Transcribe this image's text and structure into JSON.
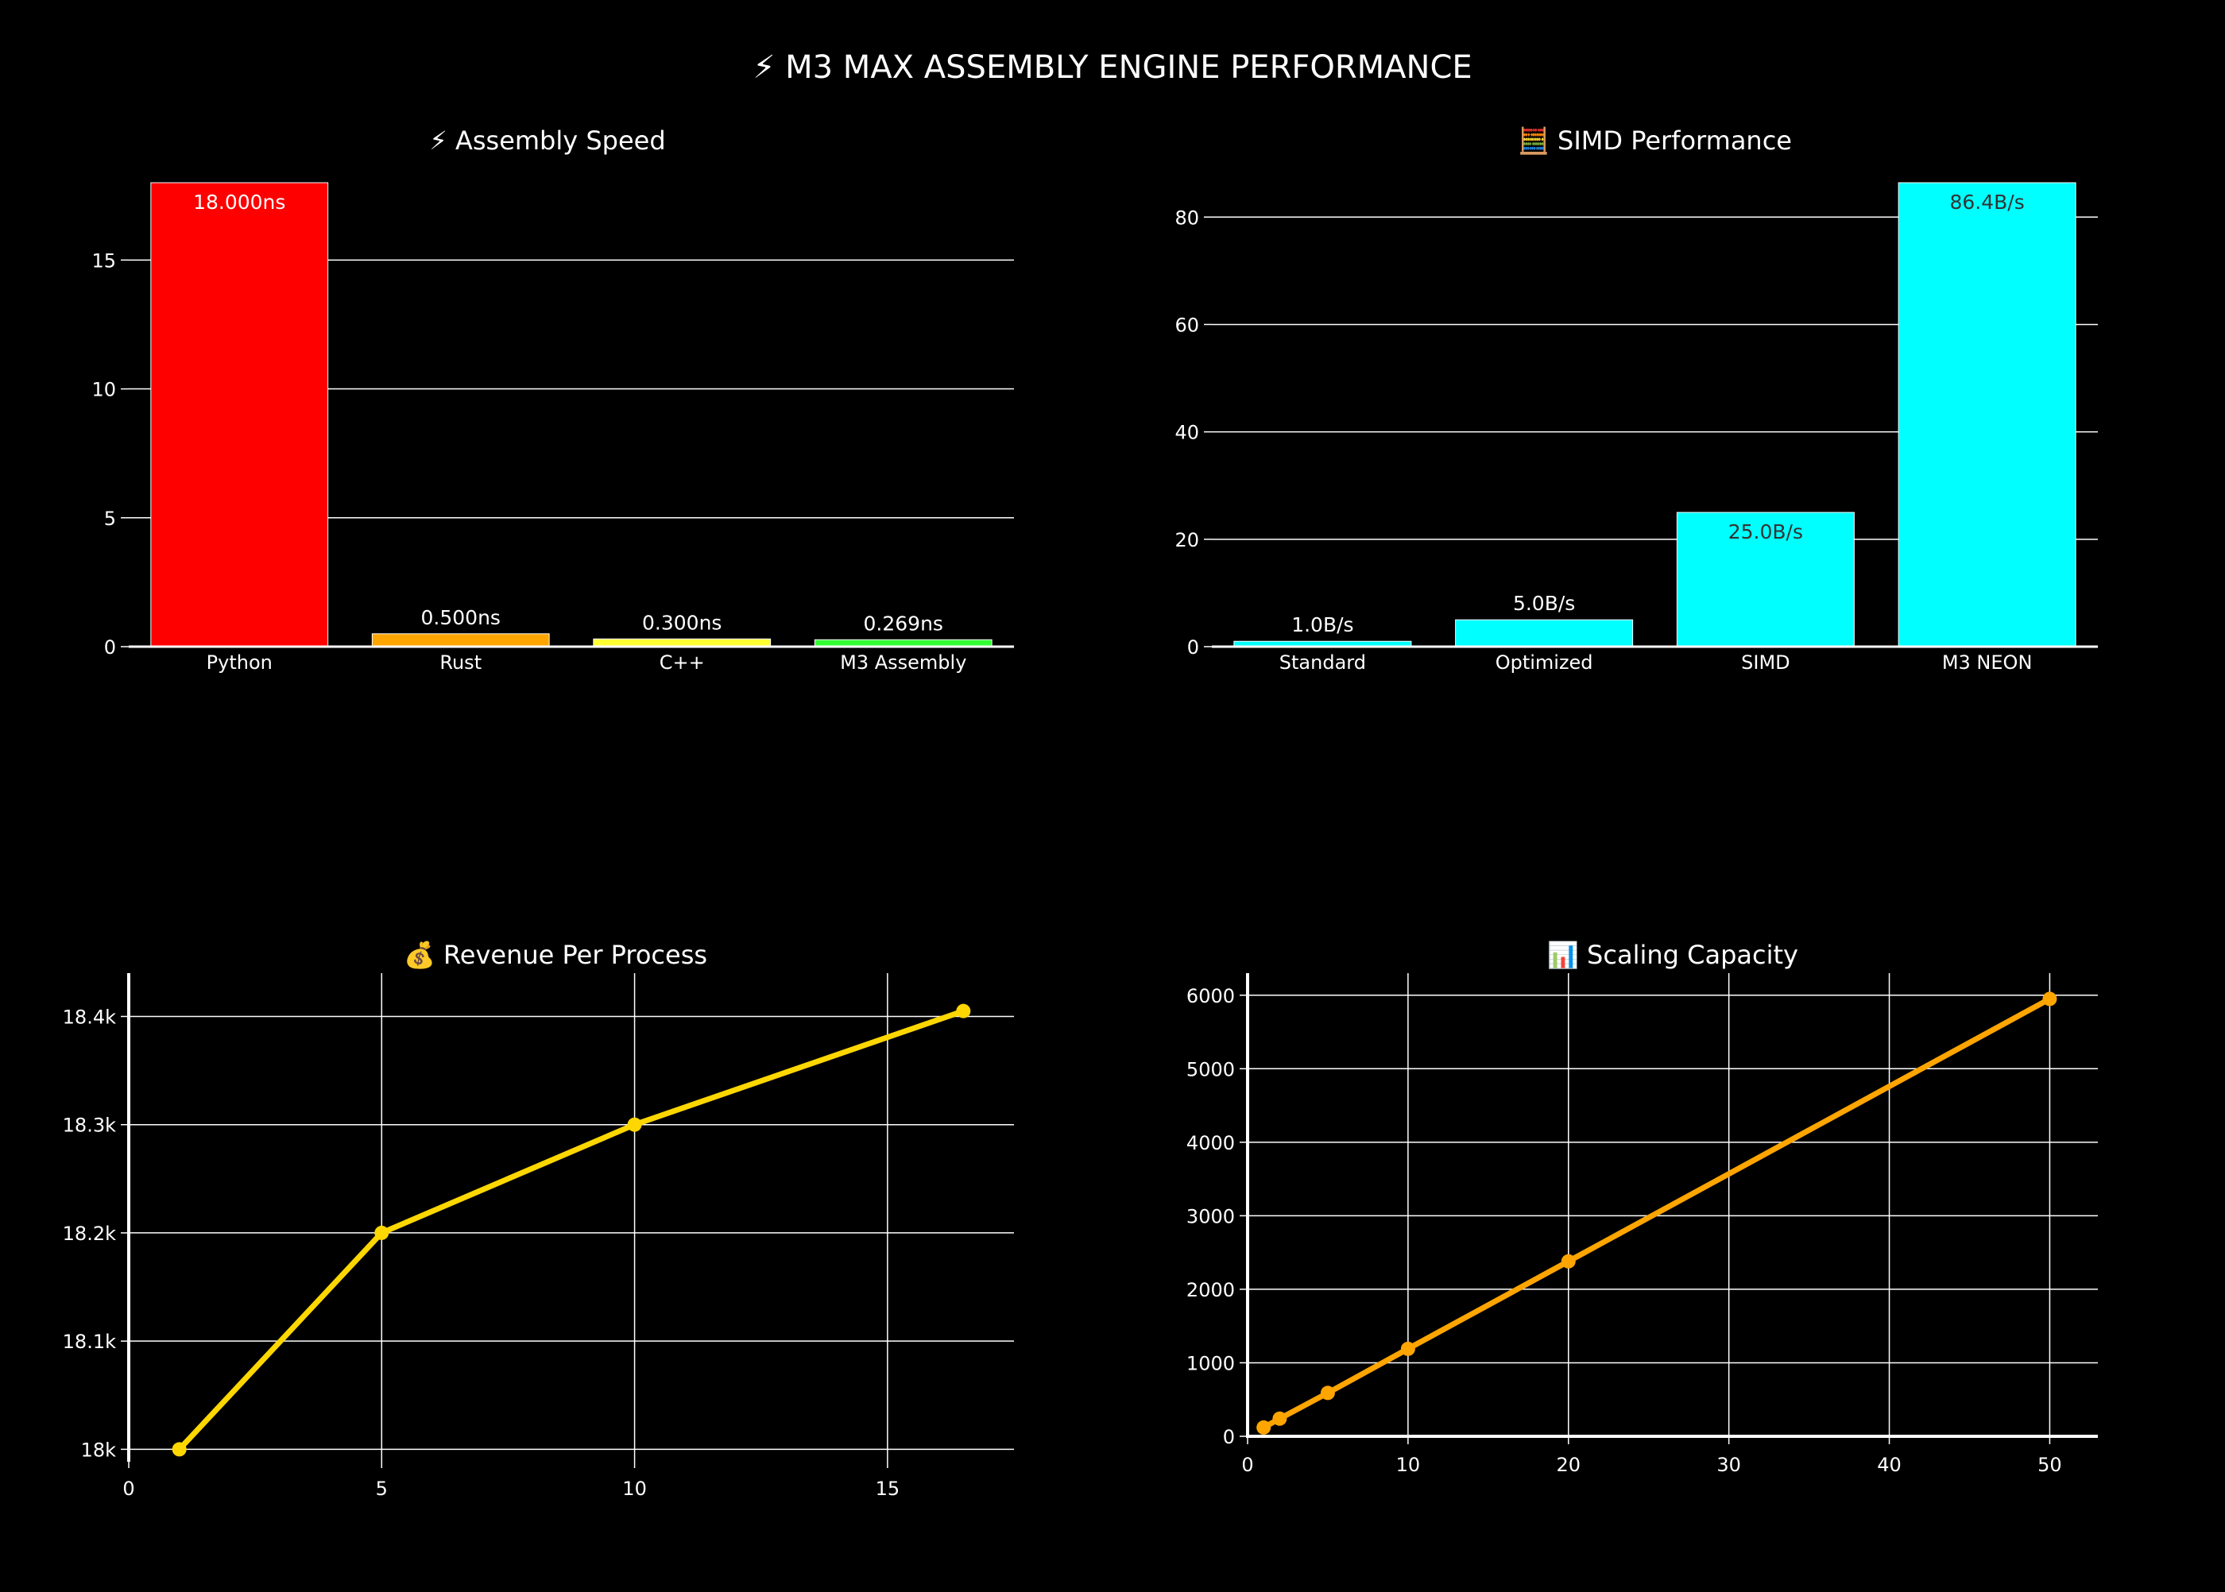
{
  "page_title": "⚡ M3 MAX ASSEMBLY ENGINE PERFORMANCE",
  "colors": {
    "background": "#000000",
    "grid": "#ffffff",
    "text": "#ffffff"
  },
  "chart_data": [
    {
      "id": "assembly-speed",
      "type": "bar",
      "title": "⚡ Assembly Speed",
      "categories": [
        "Python",
        "Rust",
        "C++",
        "M3 Assembly"
      ],
      "values": [
        18.0,
        0.5,
        0.3,
        0.269
      ],
      "labels": [
        "18.000ns",
        "0.500ns",
        "0.300ns",
        "0.269ns"
      ],
      "colors": [
        "#ff0000",
        "#ffa500",
        "#ffff33",
        "#33ff33"
      ],
      "label_colors": [
        "#ffffff",
        "#ffffff",
        "#ffffff",
        "#ffffff"
      ],
      "ylim": [
        0,
        18
      ],
      "yticks": [
        0,
        5,
        10,
        15
      ],
      "ytick_labels": [
        "0",
        "5",
        "10",
        "15"
      ],
      "grid": true
    },
    {
      "id": "simd-performance",
      "type": "bar",
      "title": "🧮 SIMD Performance",
      "categories": [
        "Standard",
        "Optimized",
        "SIMD",
        "M3 NEON"
      ],
      "values": [
        1.0,
        5.0,
        25.0,
        86.4
      ],
      "labels": [
        "1.0B/s",
        "5.0B/s",
        "25.0B/s",
        "86.4B/s"
      ],
      "colors": [
        "#00ffff",
        "#00ffff",
        "#00ffff",
        "#00ffff"
      ],
      "label_colors": [
        "#ffffff",
        "#ffffff",
        "#333333",
        "#333333"
      ],
      "ylim": [
        0,
        86.4
      ],
      "yticks": [
        0,
        20,
        40,
        60,
        80
      ],
      "ytick_labels": [
        "0",
        "20",
        "40",
        "60",
        "80"
      ],
      "grid": true
    },
    {
      "id": "revenue-per-process",
      "type": "line",
      "title": "💰 Revenue Per Process",
      "x": [
        1,
        5,
        10,
        16.5
      ],
      "y": [
        18000,
        18200,
        18300,
        18405
      ],
      "color": "#ffd700",
      "xlim": [
        0,
        17.5
      ],
      "ylim": [
        17990,
        18440
      ],
      "xticks": [
        0,
        5,
        10,
        15
      ],
      "xtick_labels": [
        "0",
        "5",
        "10",
        "15"
      ],
      "yticks": [
        18000,
        18100,
        18200,
        18300,
        18400
      ],
      "ytick_labels": [
        "18k",
        "18.1k",
        "18.2k",
        "18.3k",
        "18.4k"
      ],
      "grid": true
    },
    {
      "id": "scaling-capacity",
      "type": "line",
      "title": "📊 Scaling Capacity",
      "x": [
        1,
        2,
        5,
        10,
        20,
        50
      ],
      "y": [
        120,
        240,
        590,
        1190,
        2380,
        5950
      ],
      "color": "#ffa500",
      "xlim": [
        0,
        53
      ],
      "ylim": [
        0,
        6300
      ],
      "xticks": [
        0,
        10,
        20,
        30,
        40,
        50
      ],
      "xtick_labels": [
        "0",
        "10",
        "20",
        "30",
        "40",
        "50"
      ],
      "yticks": [
        0,
        1000,
        2000,
        3000,
        4000,
        5000,
        6000
      ],
      "ytick_labels": [
        "0",
        "1000",
        "2000",
        "3000",
        "4000",
        "5000",
        "6000"
      ],
      "grid": true
    }
  ]
}
